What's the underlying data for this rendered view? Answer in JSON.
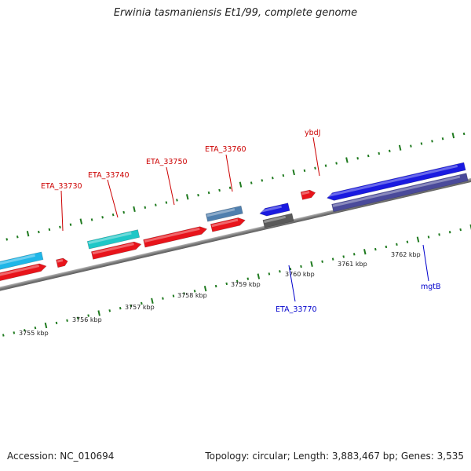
{
  "title": "Erwinia tasmaniensis Et1/99, complete genome",
  "footer": {
    "accession": "Accession: NC_010694",
    "summary": "Topology: circular; Length: 3,883,467 bp; Genes: 3,535"
  },
  "colors": {
    "backbone": "#8a8a8a",
    "ticks": "#1f7a1f",
    "forward_red": "#e8141b",
    "forward_cyan": "#1fb6e8",
    "teal": "#1ec7c7",
    "steelblue": "#4f7fae",
    "reverse_blue": "#1a1ae0",
    "reverse_slate": "#4a4a9a",
    "grey": "#5a5a5a",
    "label_red": "#cc0000",
    "label_blue": "#0000cc"
  },
  "ticks": {
    "labels": [
      "3755 kbp",
      "3756 kbp",
      "3757 kbp",
      "3758 kbp",
      "3759 kbp",
      "3760 kbp",
      "3761 kbp",
      "3762 kbp"
    ]
  },
  "genes": {
    "labels": [
      {
        "name": "ETA_33730",
        "strand": "forward"
      },
      {
        "name": "ETA_33740",
        "strand": "forward"
      },
      {
        "name": "ETA_33750",
        "strand": "forward"
      },
      {
        "name": "ETA_33760",
        "strand": "forward"
      },
      {
        "name": "ybdJ",
        "strand": "forward"
      },
      {
        "name": "ETA_33770",
        "strand": "reverse"
      },
      {
        "name": "mgtB",
        "strand": "reverse"
      }
    ]
  }
}
